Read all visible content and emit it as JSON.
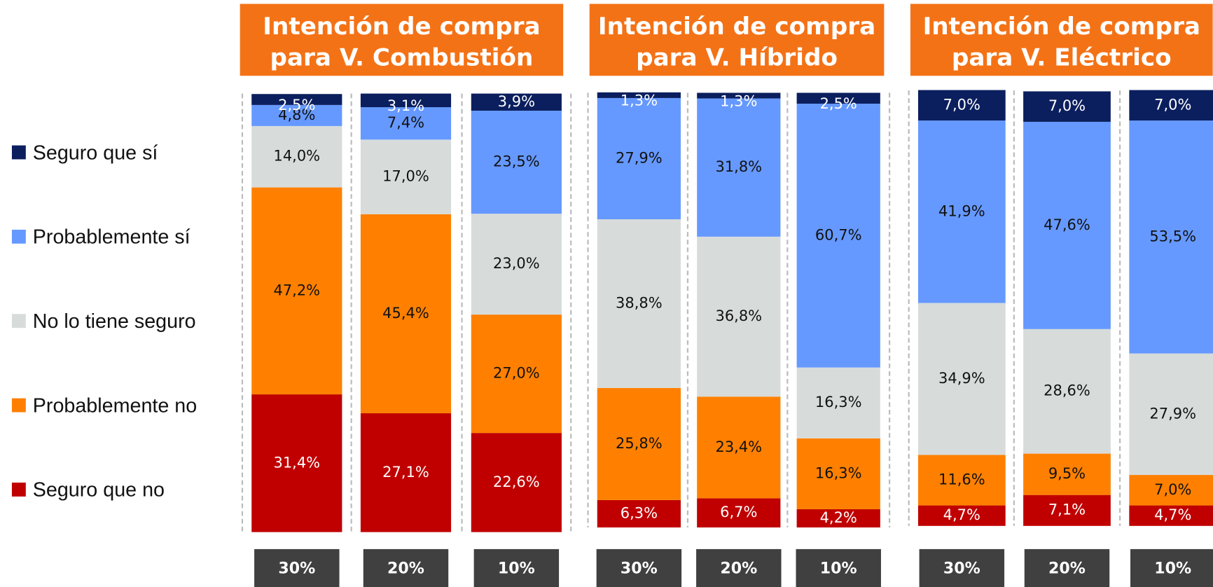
{
  "chart_data": {
    "type": "bar",
    "stacked": true,
    "ylim": [
      0,
      100
    ],
    "title_color": "#f47216",
    "legend": [
      {
        "name": "Seguro que sí",
        "color": "#0b1f5e"
      },
      {
        "name": "Probablemente sí",
        "color": "#6699ff"
      },
      {
        "name": "No lo tiene seguro",
        "color": "#d7dcdb"
      },
      {
        "name": "Probablemente no",
        "color": "#ff8000"
      },
      {
        "name": "Seguro que no",
        "color": "#c00000"
      }
    ],
    "panels": [
      {
        "title": [
          "Intención de compra",
          "para V. Combustión"
        ],
        "categories": [
          "30%",
          "20%",
          "10%"
        ],
        "series": [
          {
            "values": [
              2.5,
              3.1,
              3.9
            ],
            "value_labels": [
              "2,5%",
              "3,1%",
              "3,9%"
            ]
          },
          {
            "values": [
              4.8,
              7.4,
              23.5
            ],
            "value_labels": [
              "4,8%",
              "7,4%",
              "23,5%"
            ]
          },
          {
            "values": [
              14.0,
              17.0,
              23.0
            ],
            "value_labels": [
              "14,0%",
              "17,0%",
              "23,0%"
            ]
          },
          {
            "values": [
              47.2,
              45.4,
              27.0
            ],
            "value_labels": [
              "47,2%",
              "45,4%",
              "27,0%"
            ]
          },
          {
            "values": [
              31.4,
              27.1,
              22.6
            ],
            "value_labels": [
              "31,4%",
              "27,1%",
              "22,6%"
            ]
          }
        ]
      },
      {
        "title": [
          "Intención de compra",
          "para V. Híbrido"
        ],
        "categories": [
          "30%",
          "20%",
          "10%"
        ],
        "series": [
          {
            "values": [
              1.3,
              1.3,
              2.5
            ],
            "value_labels": [
              "1,3%",
              "1,3%",
              "2,5%"
            ]
          },
          {
            "values": [
              27.9,
              31.8,
              60.7
            ],
            "value_labels": [
              "27,9%",
              "31,8%",
              "60,7%"
            ]
          },
          {
            "values": [
              38.8,
              36.8,
              16.3
            ],
            "value_labels": [
              "38,8%",
              "36,8%",
              "16,3%"
            ]
          },
          {
            "values": [
              25.8,
              23.4,
              16.3
            ],
            "value_labels": [
              "25,8%",
              "23,4%",
              "16,3%"
            ]
          },
          {
            "values": [
              6.3,
              6.7,
              4.2
            ],
            "value_labels": [
              "6,3%",
              "6,7%",
              "4,2%"
            ]
          }
        ]
      },
      {
        "title": [
          "Intención de compra",
          "para V. Eléctrico"
        ],
        "categories": [
          "30%",
          "20%",
          "10%"
        ],
        "series": [
          {
            "values": [
              7.0,
              7.0,
              7.0
            ],
            "value_labels": [
              "7,0%",
              "7,0%",
              "7,0%"
            ]
          },
          {
            "values": [
              41.9,
              47.6,
              53.5
            ],
            "value_labels": [
              "41,9%",
              "47,6%",
              "53,5%"
            ]
          },
          {
            "values": [
              34.9,
              28.6,
              27.9
            ],
            "value_labels": [
              "34,9%",
              "28,6%",
              "27,9%"
            ]
          },
          {
            "values": [
              11.6,
              9.5,
              7.0
            ],
            "value_labels": [
              "11,6%",
              "9,5%",
              "7,0%"
            ]
          },
          {
            "values": [
              4.7,
              7.1,
              4.7
            ],
            "value_labels": [
              "4,7%",
              "7,1%",
              "4,7%"
            ]
          }
        ]
      }
    ]
  }
}
